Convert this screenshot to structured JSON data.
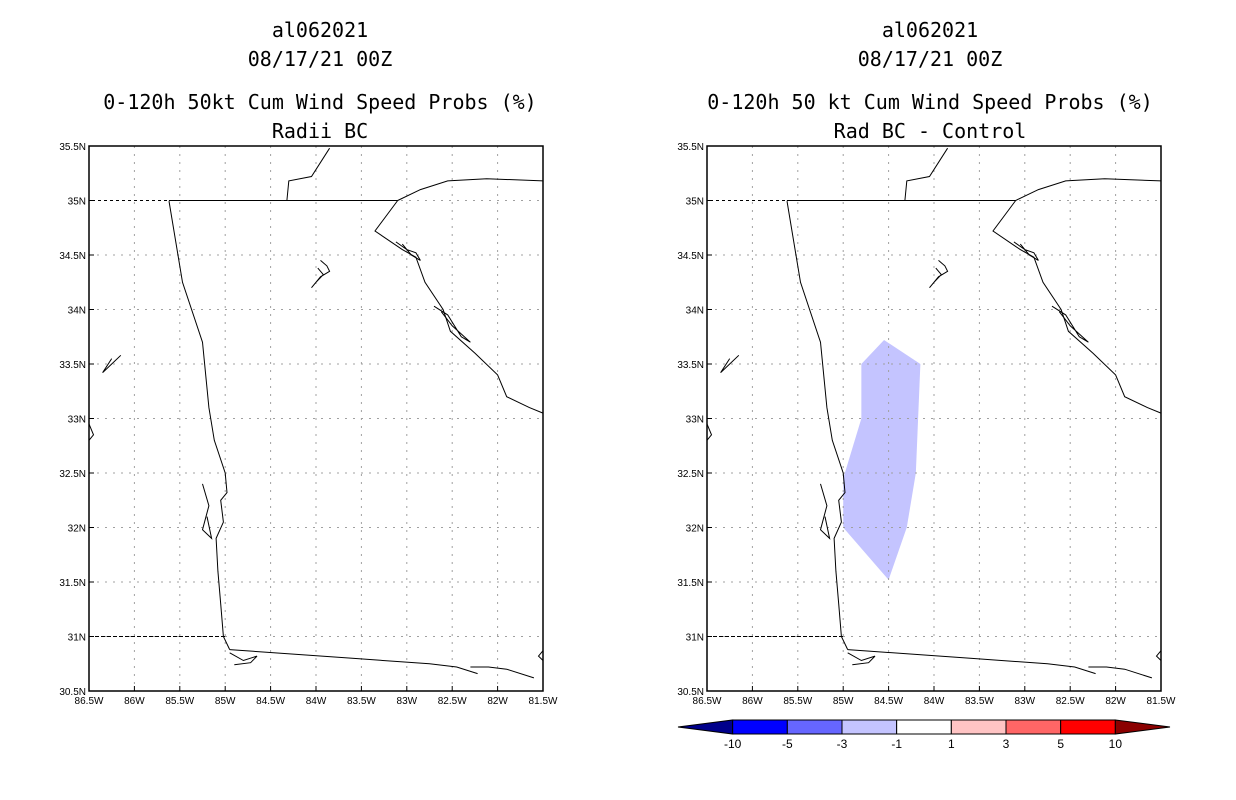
{
  "panels": [
    {
      "storm_id": "al062021",
      "datetime": "08/17/21 00Z",
      "product": "0-120h 50kt Cum Wind Speed Probs (%)",
      "subtitle": "Radii BC"
    },
    {
      "storm_id": "al062021",
      "datetime": "08/17/21 00Z",
      "product": "0-120h 50 kt Cum Wind Speed Probs (%)",
      "subtitle": "Rad BC - Control"
    }
  ],
  "axes": {
    "lat_labels": [
      "35.5N",
      "35N",
      "34.5N",
      "34N",
      "33.5N",
      "33N",
      "32.5N",
      "32N",
      "31.5N",
      "31N",
      "30.5N"
    ],
    "lon_labels": [
      "86.5W",
      "86W",
      "85.5W",
      "85W",
      "84.5W",
      "84W",
      "83.5W",
      "83W",
      "82.5W",
      "82W",
      "81.5W"
    ],
    "lat_range": [
      30.5,
      35.5
    ],
    "lon_range": [
      -86.5,
      -81.5
    ],
    "grid": true
  },
  "colorbar": {
    "labels": [
      "-10",
      "-5",
      "-3",
      "-1",
      "1",
      "3",
      "5",
      "10"
    ],
    "colors": [
      "#00008b",
      "#0000ff",
      "#6666ff",
      "#c4c4ff",
      "#ffffff",
      "#ffc4c4",
      "#ff6666",
      "#ff0000",
      "#8b0000"
    ]
  },
  "difference_shading": {
    "color": "#c4c4ff",
    "category": "-3 to -1",
    "polygon_lonlat": [
      [
        -84.8,
        33.5
      ],
      [
        -84.55,
        33.72
      ],
      [
        -84.15,
        33.5
      ],
      [
        -84.2,
        32.5
      ],
      [
        -84.3,
        32.0
      ],
      [
        -84.5,
        31.52
      ],
      [
        -85.0,
        32.0
      ],
      [
        -85.0,
        32.45
      ],
      [
        -84.8,
        33.0
      ]
    ]
  },
  "colors": {
    "map_line": "#000000",
    "grid_line": "#a0a0a0",
    "background": "#ffffff"
  }
}
